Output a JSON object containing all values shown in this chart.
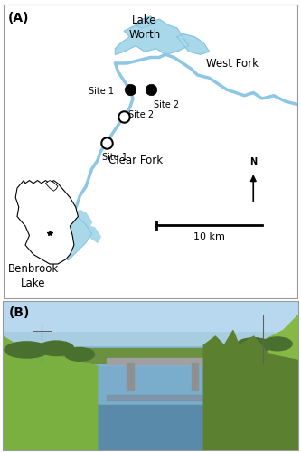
{
  "panel_a_label": "(A)",
  "panel_b_label": "(B)",
  "map_bg_color": "#ffffff",
  "water_color": "#a8d8ea",
  "water_stroke": "#8ec6e0",
  "river_color": "#8ec6e6",
  "border_color": "#000000",
  "text_color": "#000000",
  "label_lake_worth": "Lake\nWorth",
  "label_west_fork": "West Fork",
  "label_clear_fork": "Clear Fork",
  "label_benbrook": "Benbrook\nLake",
  "label_site1_wf": "Site 1",
  "label_site2_wf": "Site 2",
  "label_site1_cf": "Site 1",
  "label_site2_cf": "Site 2",
  "label_10km": "10 km",
  "label_N": "N",
  "filled_marker_color": "#000000",
  "open_marker_color": "#ffffff",
  "marker_edgecolor": "#000000",
  "marker_size": 80,
  "font_size_labels": 7,
  "font_size_panel": 10,
  "fig_bg": "#ffffff"
}
